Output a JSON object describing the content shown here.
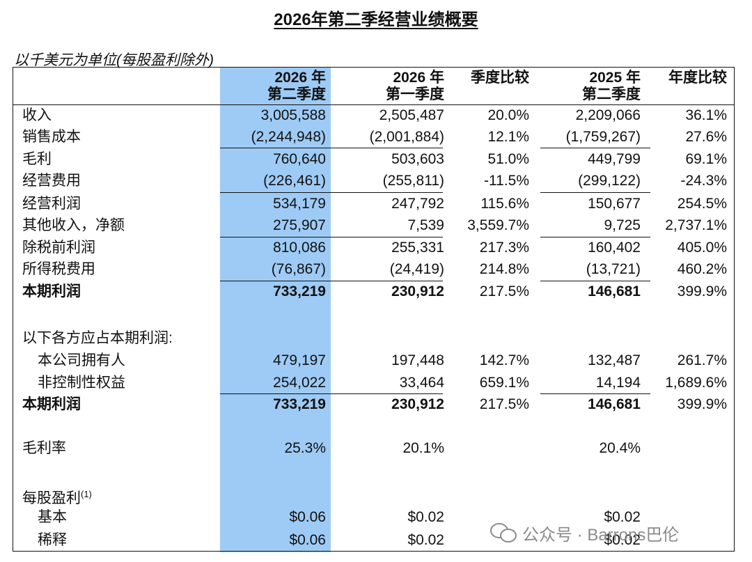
{
  "title": "2026年第二季经营业绩概要",
  "unit_note": "以千美元为单位(每股盈利除外)",
  "headers": {
    "c1": [
      "2026 年",
      "第二季度"
    ],
    "c2": [
      "2026 年",
      "第一季度"
    ],
    "c3": "季度比较",
    "c4": [
      "2025 年",
      "第二季度"
    ],
    "c5": "年度比较"
  },
  "rows": [
    {
      "label": "收入",
      "c1": "3,005,588",
      "c2": "2,505,487",
      "c3": "20.0%",
      "c4": "2,209,066",
      "c5": "36.1%"
    },
    {
      "label": "销售成本",
      "c1": "(2,244,948)",
      "c2": "(2,001,884)",
      "c3": "12.1%",
      "c4": "(1,759,267)",
      "c5": "27.6%"
    },
    {
      "label": "毛利",
      "c1": "760,640",
      "c2": "503,603",
      "c3": "51.0%",
      "c4": "449,799",
      "c5": "69.1%"
    },
    {
      "label": "经营费用",
      "c1": "(226,461)",
      "c2": "(255,811)",
      "c3": "-11.5%",
      "c4": "(299,122)",
      "c5": "-24.3%"
    },
    {
      "label": "经营利润",
      "c1": "534,179",
      "c2": "247,792",
      "c3": "115.6%",
      "c4": "150,677",
      "c5": "254.5%"
    },
    {
      "label": "其他收入，净额",
      "c1": "275,907",
      "c2": "7,539",
      "c3": "3,559.7%",
      "c4": "9,725",
      "c5": "2,737.1%"
    },
    {
      "label": "除税前利润",
      "c1": "810,086",
      "c2": "255,331",
      "c3": "217.3%",
      "c4": "160,402",
      "c5": "405.0%"
    },
    {
      "label": "所得税费用",
      "c1": "(76,867)",
      "c2": "(24,419)",
      "c3": "214.8%",
      "c4": "(13,721)",
      "c5": "460.2%"
    },
    {
      "label": "本期利润",
      "c1": "733,219",
      "c2": "230,912",
      "c3": "217.5%",
      "c4": "146,681",
      "c5": "399.9%"
    },
    {
      "label": "以下各方应占本期利润:"
    },
    {
      "label": "本公司拥有人",
      "c1": "479,197",
      "c2": "197,448",
      "c3": "142.7%",
      "c4": "132,487",
      "c5": "261.7%"
    },
    {
      "label": "非控制性权益",
      "c1": "254,022",
      "c2": "33,464",
      "c3": "659.1%",
      "c4": "14,194",
      "c5": "1,689.6%"
    },
    {
      "label": "本期利润",
      "c1": "733,219",
      "c2": "230,912",
      "c3": "217.5%",
      "c4": "146,681",
      "c5": "399.9%"
    },
    {
      "label": "毛利率",
      "c1": "25.3%",
      "c2": "20.1%",
      "c4": "20.4%"
    },
    {
      "label": "每股盈利",
      "footnote": "(1)"
    },
    {
      "label": "基本",
      "c1": "$0.06",
      "c2": "$0.02",
      "c4": "$0.02"
    },
    {
      "label": "稀释",
      "c1": "$0.06",
      "c2": "$0.02",
      "c4": "$0.02"
    }
  ],
  "watermark": {
    "icon": "wechat-icon",
    "text": "公众号 · Barrons巴伦"
  }
}
